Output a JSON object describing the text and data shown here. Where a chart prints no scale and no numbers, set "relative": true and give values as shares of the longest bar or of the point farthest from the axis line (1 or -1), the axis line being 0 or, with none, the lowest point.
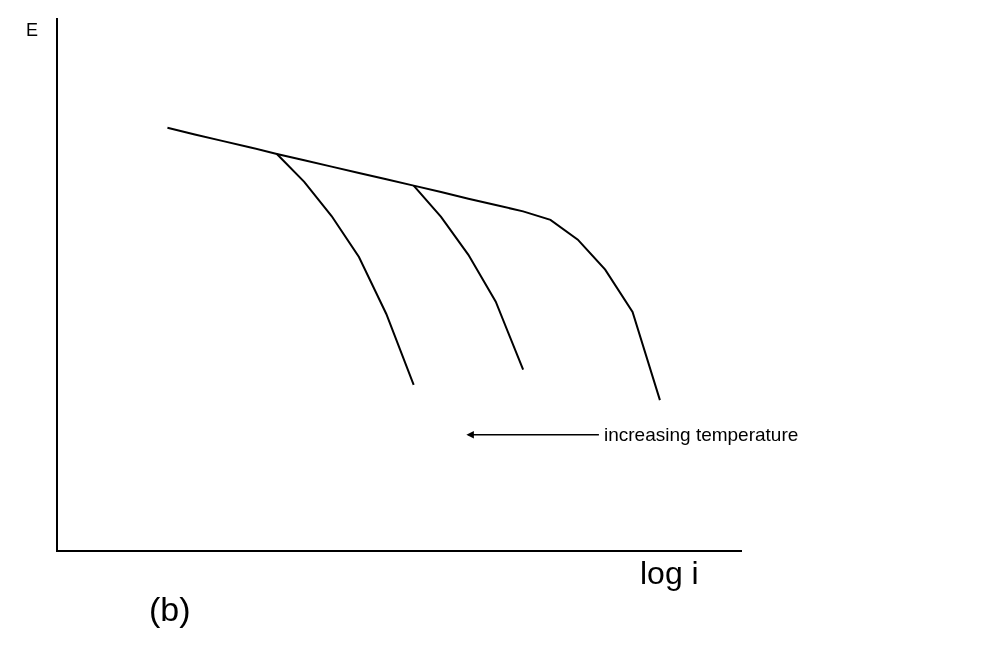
{
  "chart_data": {
    "type": "line",
    "relative": true,
    "ylabel": "E",
    "xlabel": "log i",
    "marker": "none",
    "line_style": "solid",
    "annotations": [
      "increasing temperature",
      "(b)"
    ],
    "categories": [
      null,
      null,
      null,
      null,
      null,
      null,
      null,
      null,
      null,
      null,
      null,
      null,
      null,
      null,
      null,
      null,
      null,
      null,
      null,
      null,
      null,
      null,
      null
    ],
    "series": [
      {
        "color": "#000000",
        "values": [
          null,
          null,
          null,
          null,
          1.0,
          0.984,
          0.969,
          0.954,
          0.938,
          0.923,
          0.908,
          0.893,
          0.878,
          0.863,
          0.848,
          0.832,
          0.817,
          0.802,
          0.782,
          0.735,
          0.664,
          0.564,
          0.355
        ]
      },
      {
        "color": "#000000",
        "values": [
          null,
          null,
          null,
          null,
          null,
          null,
          null,
          null,
          0.938,
          0.872,
          0.791,
          0.694,
          0.559,
          0.391,
          null,
          null,
          null,
          null,
          null,
          null,
          null,
          null,
          null
        ]
      },
      {
        "color": "#000000",
        "values": [
          null,
          null,
          null,
          null,
          null,
          null,
          null,
          null,
          null,
          null,
          null,
          null,
          null,
          0.863,
          0.789,
          0.699,
          0.588,
          0.427,
          null,
          null,
          null,
          null,
          null
        ]
      }
    ]
  }
}
